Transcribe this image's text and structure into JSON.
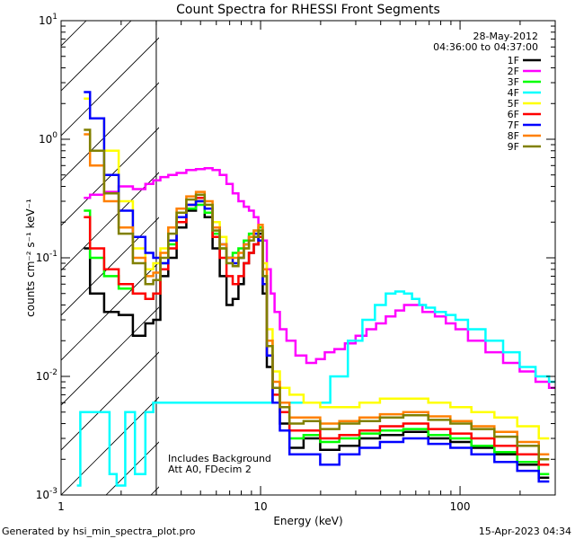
{
  "footer": {
    "generated_by": "Generated by hsi_min_spectra_plot.pro",
    "timestamp": "15-Apr-2023 04:34"
  },
  "chart_data": {
    "type": "line",
    "title": "Count Spectra for RHESSI Front Segments",
    "xlabel": "Energy (keV)",
    "ylabel": "counts cm⁻² s⁻¹ keV⁻¹",
    "xscale": "log",
    "yscale": "log",
    "xlim": [
      1,
      300
    ],
    "ylim": [
      0.001,
      10
    ],
    "x_ticks": [
      {
        "value": 1,
        "label": "1"
      },
      {
        "value": 10,
        "label": "10"
      },
      {
        "value": 100,
        "label": "100"
      }
    ],
    "y_ticks": [
      {
        "value": 10,
        "mant": "10",
        "exp": "1"
      },
      {
        "value": 1,
        "mant": "10",
        "exp": "0"
      },
      {
        "value": 0.1,
        "mant": "10",
        "exp": "-1"
      },
      {
        "value": 0.01,
        "mant": "10",
        "exp": "-2"
      },
      {
        "value": 0.001,
        "mant": "10",
        "exp": "-3"
      }
    ],
    "date_label": "28-May-2012",
    "time_range": "04:36:00 to 04:37:00",
    "annotations": [
      "Includes Background",
      "Att A0, FDecim 2"
    ],
    "shaded_region_kev": [
      1,
      3
    ],
    "legend_position": "top-right",
    "series": [
      {
        "name": "1F",
        "color": "#000000",
        "x": [
          1.3,
          1.5,
          1.8,
          2.1,
          2.5,
          2.8,
          3.0,
          3.3,
          3.6,
          4.0,
          4.5,
          5.0,
          5.5,
          6.0,
          6.5,
          7.0,
          7.5,
          8.0,
          8.5,
          9.0,
          9.5,
          10.0,
          10.5,
          11.0,
          12.0,
          13.0,
          15,
          18,
          22,
          28,
          35,
          45,
          60,
          80,
          100,
          130,
          170,
          220,
          280
        ],
        "y": [
          0.12,
          0.05,
          0.035,
          0.033,
          0.022,
          0.028,
          0.03,
          0.07,
          0.1,
          0.18,
          0.25,
          0.3,
          0.22,
          0.12,
          0.07,
          0.04,
          0.045,
          0.06,
          0.09,
          0.11,
          0.13,
          0.16,
          0.05,
          0.012,
          0.006,
          0.004,
          0.0025,
          0.003,
          0.0024,
          0.0026,
          0.003,
          0.0032,
          0.0034,
          0.003,
          0.0028,
          0.0025,
          0.0022,
          0.0018,
          0.0014
        ]
      },
      {
        "name": "2F",
        "color": "#ff00ff",
        "x": [
          1.3,
          1.5,
          1.8,
          2.1,
          2.5,
          2.8,
          3.0,
          3.3,
          3.6,
          4.0,
          4.5,
          5.0,
          5.5,
          6.0,
          6.5,
          7.0,
          7.5,
          8.0,
          8.5,
          9.0,
          9.5,
          10.0,
          10.5,
          11.0,
          11.5,
          12.0,
          13.0,
          14,
          16,
          18,
          20,
          22,
          25,
          28,
          32,
          36,
          40,
          45,
          50,
          55,
          60,
          70,
          80,
          90,
          100,
          120,
          150,
          180,
          220,
          260,
          300
        ],
        "y": [
          0.32,
          0.34,
          0.36,
          0.4,
          0.38,
          0.42,
          0.45,
          0.48,
          0.5,
          0.52,
          0.55,
          0.56,
          0.57,
          0.55,
          0.5,
          0.42,
          0.35,
          0.3,
          0.27,
          0.25,
          0.22,
          0.18,
          0.14,
          0.08,
          0.05,
          0.035,
          0.025,
          0.02,
          0.015,
          0.013,
          0.014,
          0.016,
          0.017,
          0.019,
          0.022,
          0.025,
          0.028,
          0.032,
          0.036,
          0.04,
          0.04,
          0.035,
          0.032,
          0.028,
          0.025,
          0.02,
          0.016,
          0.013,
          0.011,
          0.009,
          0.008
        ]
      },
      {
        "name": "3F",
        "color": "#00ff00",
        "x": [
          1.3,
          1.5,
          1.8,
          2.1,
          2.5,
          2.8,
          3.0,
          3.3,
          3.6,
          4.0,
          4.5,
          5.0,
          5.5,
          6.0,
          6.5,
          7.0,
          7.5,
          8.0,
          8.5,
          9.0,
          9.5,
          10.0,
          10.5,
          11.0,
          12.0,
          13.0,
          15,
          18,
          22,
          28,
          35,
          45,
          60,
          80,
          100,
          130,
          170,
          220,
          280
        ],
        "y": [
          0.25,
          0.1,
          0.07,
          0.055,
          0.05,
          0.045,
          0.05,
          0.09,
          0.13,
          0.2,
          0.26,
          0.28,
          0.24,
          0.16,
          0.12,
          0.1,
          0.11,
          0.12,
          0.14,
          0.16,
          0.17,
          0.18,
          0.07,
          0.02,
          0.008,
          0.005,
          0.003,
          0.0032,
          0.0028,
          0.003,
          0.0033,
          0.0035,
          0.0036,
          0.0032,
          0.003,
          0.0026,
          0.0023,
          0.0019,
          0.0015
        ]
      },
      {
        "name": "4F",
        "color": "#00ffff",
        "x": [
          1.2,
          1.3,
          1.5,
          1.7,
          1.8,
          2.0,
          2.2,
          2.5,
          2.8,
          3.0,
          20,
          25,
          30,
          35,
          40,
          45,
          50,
          55,
          60,
          65,
          70,
          80,
          90,
          100,
          120,
          150,
          180,
          220,
          260,
          300
        ],
        "y": [
          0.0012,
          0.005,
          0.005,
          0.005,
          0.0015,
          0.0012,
          0.005,
          0.0015,
          0.005,
          0.006,
          0.006,
          0.01,
          0.02,
          0.03,
          0.04,
          0.05,
          0.052,
          0.05,
          0.045,
          0.04,
          0.038,
          0.035,
          0.033,
          0.03,
          0.025,
          0.02,
          0.016,
          0.012,
          0.01,
          0.009
        ]
      },
      {
        "name": "5F",
        "color": "#ffff00",
        "x": [
          1.3,
          1.5,
          1.8,
          2.1,
          2.5,
          2.8,
          3.0,
          3.3,
          3.6,
          4.0,
          4.5,
          5.0,
          5.5,
          6.0,
          6.5,
          7.0,
          7.5,
          8.0,
          8.5,
          9.0,
          9.5,
          10.0,
          10.5,
          11.0,
          12.0,
          13.0,
          15,
          18,
          22,
          28,
          35,
          45,
          60,
          80,
          100,
          130,
          170,
          220,
          280
        ],
        "y": [
          2.2,
          1.5,
          0.8,
          0.3,
          0.12,
          0.08,
          0.09,
          0.12,
          0.18,
          0.24,
          0.28,
          0.3,
          0.28,
          0.2,
          0.15,
          0.1,
          0.09,
          0.1,
          0.12,
          0.14,
          0.15,
          0.17,
          0.09,
          0.025,
          0.011,
          0.008,
          0.007,
          0.006,
          0.0055,
          0.0055,
          0.006,
          0.0065,
          0.0065,
          0.006,
          0.0055,
          0.005,
          0.0045,
          0.0038,
          0.003
        ]
      },
      {
        "name": "6F",
        "color": "#ff0000",
        "x": [
          1.3,
          1.5,
          1.8,
          2.1,
          2.5,
          2.8,
          3.0,
          3.3,
          3.6,
          4.0,
          4.5,
          5.0,
          5.5,
          6.0,
          6.5,
          7.0,
          7.5,
          8.0,
          8.5,
          9.0,
          9.5,
          10.0,
          10.5,
          11.0,
          12.0,
          13.0,
          15,
          18,
          22,
          28,
          35,
          45,
          60,
          80,
          100,
          130,
          170,
          220,
          280
        ],
        "y": [
          0.22,
          0.12,
          0.08,
          0.06,
          0.05,
          0.045,
          0.05,
          0.08,
          0.12,
          0.2,
          0.28,
          0.32,
          0.26,
          0.15,
          0.1,
          0.07,
          0.06,
          0.07,
          0.09,
          0.11,
          0.13,
          0.15,
          0.06,
          0.015,
          0.007,
          0.005,
          0.0035,
          0.0035,
          0.003,
          0.0032,
          0.0035,
          0.0038,
          0.004,
          0.0036,
          0.0033,
          0.003,
          0.0026,
          0.0022,
          0.0018
        ]
      },
      {
        "name": "7F",
        "color": "#0000ff",
        "x": [
          1.3,
          1.5,
          1.8,
          2.1,
          2.5,
          2.8,
          3.0,
          3.3,
          3.6,
          4.0,
          4.5,
          5.0,
          5.5,
          6.0,
          6.5,
          7.0,
          7.5,
          8.0,
          8.5,
          9.0,
          9.5,
          10.0,
          10.5,
          11.0,
          12.0,
          13.0,
          15,
          18,
          22,
          28,
          35,
          45,
          60,
          80,
          100,
          130,
          170,
          220,
          280
        ],
        "y": [
          2.5,
          1.5,
          0.5,
          0.25,
          0.15,
          0.11,
          0.1,
          0.09,
          0.14,
          0.22,
          0.28,
          0.3,
          0.26,
          0.18,
          0.13,
          0.1,
          0.09,
          0.1,
          0.13,
          0.15,
          0.16,
          0.14,
          0.06,
          0.015,
          0.006,
          0.0035,
          0.0022,
          0.0022,
          0.0018,
          0.0022,
          0.0025,
          0.0028,
          0.003,
          0.0027,
          0.0025,
          0.0022,
          0.0019,
          0.0016,
          0.0013
        ]
      },
      {
        "name": "8F",
        "color": "#ff8000",
        "x": [
          1.3,
          1.5,
          1.8,
          2.1,
          2.5,
          2.8,
          3.0,
          3.3,
          3.6,
          4.0,
          4.5,
          5.0,
          5.5,
          6.0,
          6.5,
          7.0,
          7.5,
          8.0,
          8.5,
          9.0,
          9.5,
          10.0,
          10.5,
          11.0,
          12.0,
          13.0,
          15,
          18,
          22,
          28,
          35,
          45,
          60,
          80,
          100,
          130,
          170,
          220,
          280
        ],
        "y": [
          1.1,
          0.6,
          0.3,
          0.18,
          0.1,
          0.07,
          0.075,
          0.11,
          0.18,
          0.26,
          0.33,
          0.36,
          0.3,
          0.18,
          0.13,
          0.1,
          0.1,
          0.11,
          0.13,
          0.15,
          0.17,
          0.19,
          0.08,
          0.02,
          0.009,
          0.006,
          0.0045,
          0.0045,
          0.004,
          0.0042,
          0.0045,
          0.0048,
          0.005,
          0.0046,
          0.0042,
          0.0038,
          0.0034,
          0.0028,
          0.0022
        ]
      },
      {
        "name": "9F",
        "color": "#808000",
        "x": [
          1.3,
          1.5,
          1.8,
          2.1,
          2.5,
          2.8,
          3.0,
          3.3,
          3.6,
          4.0,
          4.5,
          5.0,
          5.5,
          6.0,
          6.5,
          7.0,
          7.5,
          8.0,
          8.5,
          9.0,
          9.5,
          10.0,
          10.5,
          11.0,
          12.0,
          13.0,
          15,
          18,
          22,
          28,
          35,
          45,
          60,
          80,
          100,
          130,
          170,
          220,
          280
        ],
        "y": [
          1.2,
          0.8,
          0.35,
          0.16,
          0.09,
          0.06,
          0.065,
          0.1,
          0.16,
          0.24,
          0.31,
          0.34,
          0.28,
          0.17,
          0.12,
          0.09,
          0.085,
          0.1,
          0.12,
          0.14,
          0.15,
          0.17,
          0.07,
          0.018,
          0.008,
          0.0055,
          0.004,
          0.0042,
          0.0036,
          0.004,
          0.0042,
          0.0045,
          0.0047,
          0.0043,
          0.004,
          0.0036,
          0.0031,
          0.0026,
          0.002
        ]
      }
    ]
  }
}
